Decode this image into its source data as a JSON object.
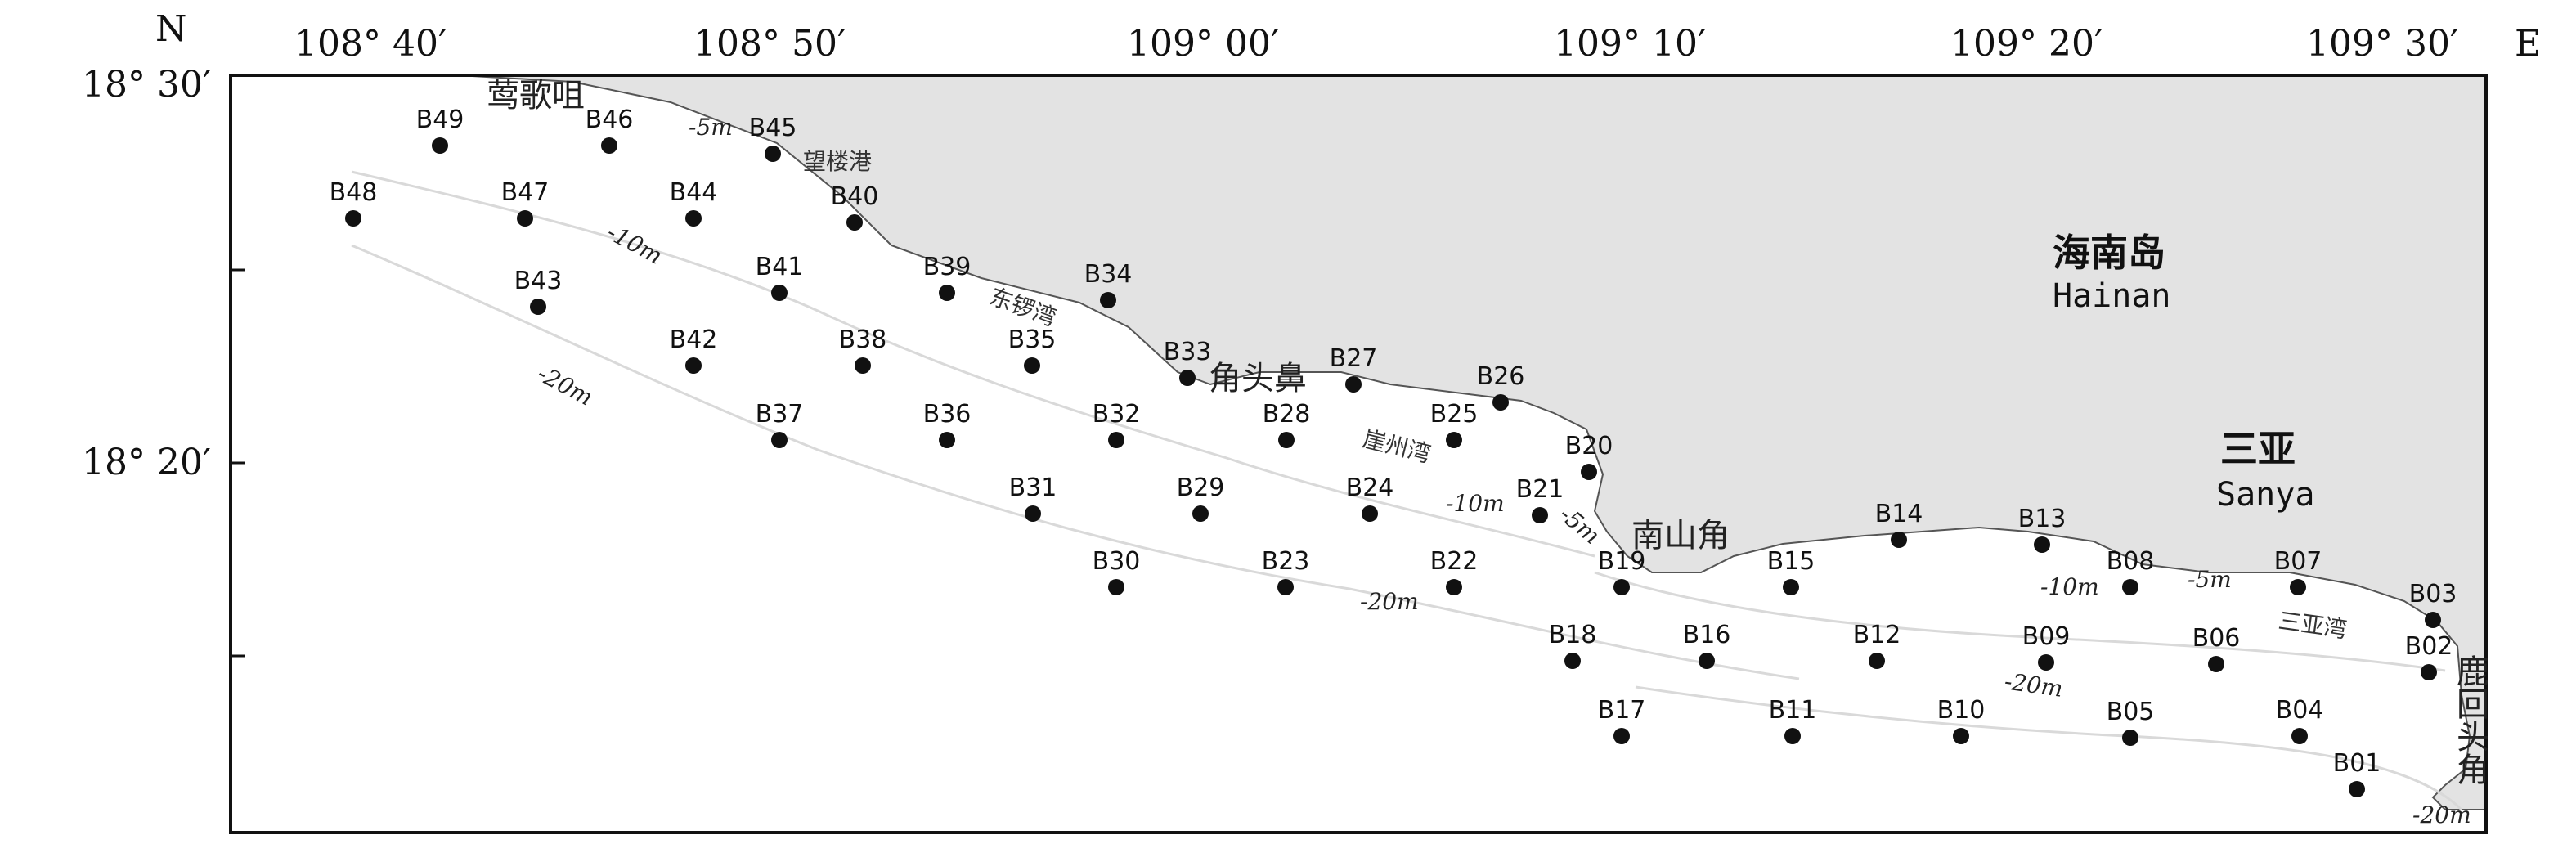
{
  "axes": {
    "north_label": "N",
    "east_label": "E",
    "longitude_ticks": [
      "108° 40′",
      "108° 50′",
      "109° 00′",
      "109° 10′",
      "109° 20′",
      "109° 30′"
    ],
    "latitude_ticks": [
      "18° 30′",
      "18° 20′"
    ]
  },
  "land": {
    "island_name_cn": "海南岛",
    "island_name_en": "Hainan",
    "city_name_cn": "三亚",
    "city_name_en": "Sanya",
    "fill_color": "#e3e3e3"
  },
  "places": [
    {
      "id": "yinggezui",
      "name": "莺歌咀"
    },
    {
      "id": "wanglougang",
      "name": "望楼港"
    },
    {
      "id": "dongluowan",
      "name": "东锣湾"
    },
    {
      "id": "jiaotoubi",
      "name": "角头鼻"
    },
    {
      "id": "yazhouwan",
      "name": "崖州湾"
    },
    {
      "id": "nanshanjiao",
      "name": "南山角"
    },
    {
      "id": "sanyawan",
      "name": "三亚湾"
    },
    {
      "id": "luhuitoujiao",
      "name": "鹿回头角"
    }
  ],
  "depth_contours": [
    {
      "id": "d1",
      "label": "-5m"
    },
    {
      "id": "d2",
      "label": "-10m"
    },
    {
      "id": "d3",
      "label": "-20m"
    },
    {
      "id": "d4",
      "label": "-20m"
    },
    {
      "id": "d5",
      "label": "-10m"
    },
    {
      "id": "d6",
      "label": "-5m"
    },
    {
      "id": "d7",
      "label": "-10m"
    },
    {
      "id": "d8",
      "label": "-5m"
    },
    {
      "id": "d9",
      "label": "-20m"
    },
    {
      "id": "d10",
      "label": "-20m"
    }
  ],
  "stations": [
    {
      "id": "B01",
      "label": "B01"
    },
    {
      "id": "B02",
      "label": "B02"
    },
    {
      "id": "B03",
      "label": "B03"
    },
    {
      "id": "B04",
      "label": "B04"
    },
    {
      "id": "B05",
      "label": "B05"
    },
    {
      "id": "B06",
      "label": "B06"
    },
    {
      "id": "B07",
      "label": "B07"
    },
    {
      "id": "B08",
      "label": "B08"
    },
    {
      "id": "B09",
      "label": "B09"
    },
    {
      "id": "B10",
      "label": "B10"
    },
    {
      "id": "B11",
      "label": "B11"
    },
    {
      "id": "B12",
      "label": "B12"
    },
    {
      "id": "B13",
      "label": "B13"
    },
    {
      "id": "B14",
      "label": "B14"
    },
    {
      "id": "B15",
      "label": "B15"
    },
    {
      "id": "B16",
      "label": "B16"
    },
    {
      "id": "B17",
      "label": "B17"
    },
    {
      "id": "B18",
      "label": "B18"
    },
    {
      "id": "B19",
      "label": "B19"
    },
    {
      "id": "B20",
      "label": "B20"
    },
    {
      "id": "B21",
      "label": "B21"
    },
    {
      "id": "B22",
      "label": "B22"
    },
    {
      "id": "B23",
      "label": "B23"
    },
    {
      "id": "B24",
      "label": "B24"
    },
    {
      "id": "B25",
      "label": "B25"
    },
    {
      "id": "B26",
      "label": "B26"
    },
    {
      "id": "B27",
      "label": "B27"
    },
    {
      "id": "B28",
      "label": "B28"
    },
    {
      "id": "B29",
      "label": "B29"
    },
    {
      "id": "B30",
      "label": "B30"
    },
    {
      "id": "B31",
      "label": "B31"
    },
    {
      "id": "B32",
      "label": "B32"
    },
    {
      "id": "B33",
      "label": "B33"
    },
    {
      "id": "B34",
      "label": "B34"
    },
    {
      "id": "B35",
      "label": "B35"
    },
    {
      "id": "B36",
      "label": "B36"
    },
    {
      "id": "B37",
      "label": "B37"
    },
    {
      "id": "B38",
      "label": "B38"
    },
    {
      "id": "B39",
      "label": "B39"
    },
    {
      "id": "B40",
      "label": "B40"
    },
    {
      "id": "B41",
      "label": "B41"
    },
    {
      "id": "B42",
      "label": "B42"
    },
    {
      "id": "B43",
      "label": "B43"
    },
    {
      "id": "B44",
      "label": "B44"
    },
    {
      "id": "B45",
      "label": "B45"
    },
    {
      "id": "B46",
      "label": "B46"
    },
    {
      "id": "B47",
      "label": "B47"
    },
    {
      "id": "B48",
      "label": "B48"
    },
    {
      "id": "B49",
      "label": "B49"
    }
  ]
}
